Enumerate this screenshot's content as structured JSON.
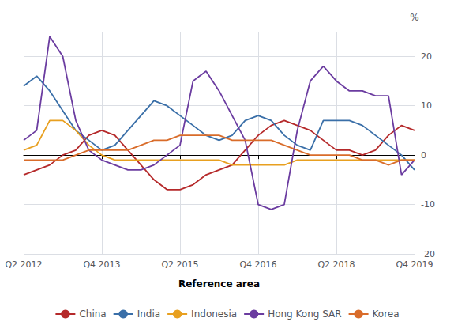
{
  "chart_data": {
    "type": "line",
    "xlabel": "Reference area",
    "ylabel": "%",
    "categories": [
      "Q2 2012",
      null,
      null,
      null,
      null,
      null,
      "Q4 2013",
      null,
      null,
      null,
      null,
      null,
      "Q2 2015",
      null,
      null,
      null,
      null,
      null,
      "Q4 2016",
      null,
      null,
      null,
      null,
      null,
      "Q2 2018",
      null,
      null,
      null,
      null,
      null,
      "Q4 2019"
    ],
    "series": [
      {
        "name": "China",
        "color": "#b5292a",
        "values": [
          -4,
          -3,
          -2,
          0,
          1,
          4,
          5,
          4,
          1,
          -2,
          -5,
          -7,
          -7,
          -6,
          -4,
          -3,
          -2,
          1,
          4,
          6,
          7,
          6,
          5,
          3,
          1,
          1,
          0,
          1,
          4,
          6,
          5
        ]
      },
      {
        "name": "India",
        "color": "#3a6fa8",
        "values": [
          14,
          16,
          13,
          9,
          5,
          3,
          1,
          2,
          5,
          8,
          11,
          10,
          8,
          6,
          4,
          3,
          4,
          7,
          8,
          7,
          4,
          2,
          1,
          7,
          7,
          7,
          6,
          4,
          2,
          0,
          -3
        ]
      },
      {
        "name": "Indonesia",
        "color": "#e8a020",
        "values": [
          1,
          2,
          7,
          7,
          5,
          2,
          0,
          -1,
          -1,
          -1,
          -1,
          -1,
          -1,
          -1,
          -1,
          -1,
          -2,
          -2,
          -2,
          -2,
          -2,
          -1,
          -1,
          -1,
          -1,
          -1,
          -1,
          -1,
          -1,
          -1,
          -1
        ]
      },
      {
        "name": "Hong Kong SAR",
        "color": "#6b3ca0",
        "values": [
          3,
          5,
          24,
          20,
          7,
          1,
          -1,
          -2,
          -3,
          -3,
          -2,
          0,
          2,
          15,
          17,
          13,
          8,
          3,
          -10,
          -11,
          -10,
          5,
          15,
          18,
          15,
          13,
          13,
          12,
          12,
          -4,
          -1
        ]
      },
      {
        "name": "Korea",
        "color": "#d96c2a",
        "values": [
          -1,
          -1,
          -1,
          -1,
          0,
          1,
          1,
          1,
          1,
          2,
          3,
          3,
          4,
          4,
          4,
          4,
          3,
          3,
          3,
          3,
          2,
          1,
          0,
          0,
          0,
          0,
          -1,
          -1,
          -2,
          -1,
          -1
        ]
      }
    ],
    "ylim": [
      -20,
      25
    ],
    "yticks": [
      -20,
      -10,
      0,
      10,
      20
    ],
    "grid": true,
    "legend": "bottom"
  }
}
